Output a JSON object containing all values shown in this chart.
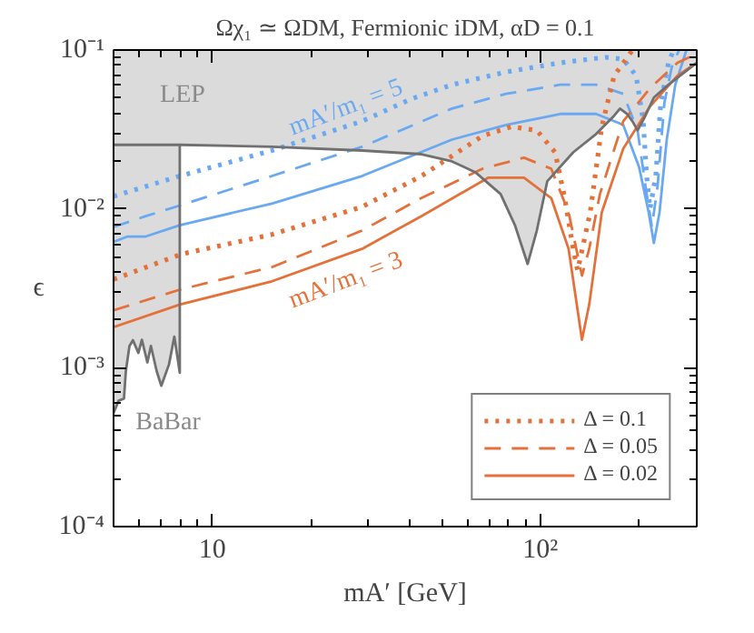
{
  "chart_data": {
    "type": "line",
    "title": "Ωχ₁ ≃ ΩDM, Fermionic iDM, αD = 0.1",
    "xlabel": "mA′ [GeV]",
    "ylabel": "ϵ",
    "log": "xy",
    "grid": false,
    "legend": "bottom right",
    "xlim": [
      5,
      300
    ],
    "ylim": [
      0.0001,
      0.1
    ],
    "xticks": [
      {
        "value": 10,
        "label": "10"
      },
      {
        "value": 100,
        "label": "10²"
      }
    ],
    "yticks": [
      {
        "value": 0.0001,
        "label": "10⁻⁴"
      },
      {
        "value": 0.001,
        "label": "10⁻³"
      },
      {
        "value": 0.01,
        "label": "10⁻²"
      },
      {
        "value": 0.1,
        "label": "10⁻¹"
      }
    ],
    "annotations": [
      "LEP",
      "BaBar",
      "mA′/m₁ = 5",
      "mA′/m₁ = 3"
    ],
    "series": [
      {
        "color": "#6aa9f2",
        "line_style": "dotted",
        "x": [
          5.0,
          7.96,
          15.2,
          28.6,
          40.2,
          53.8,
          78.7,
          115,
          158,
          179,
          196,
          206,
          211,
          216,
          225,
          233,
          246,
          255
        ],
        "values": [
          0.012,
          0.0161,
          0.0233,
          0.0356,
          0.049,
          0.0605,
          0.0728,
          0.0831,
          0.09,
          0.0876,
          0.069,
          0.0356,
          0.0161,
          0.01,
          0.0161,
          0.0465,
          0.0831,
          0.1
        ]
      },
      {
        "color": "#6aa9f2",
        "line_style": "dashed",
        "x": [
          5.0,
          6.27,
          7.96,
          15.2,
          28.6,
          53.8,
          78.7,
          115,
          148,
          179,
          198,
          211,
          219,
          228,
          239,
          252,
          265
        ],
        "values": [
          0.0077,
          0.009,
          0.0105,
          0.0161,
          0.0246,
          0.0428,
          0.053,
          0.0605,
          0.0605,
          0.053,
          0.0312,
          0.0124,
          0.0077,
          0.0141,
          0.0465,
          0.0788,
          0.1
        ]
      },
      {
        "color": "#6aa9f2",
        "line_style": "solid",
        "x": [
          5.0,
          5.52,
          6.27,
          7.96,
          15.2,
          28.6,
          53.8,
          78.7,
          115,
          148,
          179,
          200,
          214,
          222,
          231,
          243,
          258,
          279
        ],
        "values": [
          0.0062,
          0.0067,
          0.0067,
          0.0079,
          0.0108,
          0.0161,
          0.0273,
          0.0338,
          0.0396,
          0.0396,
          0.0338,
          0.0184,
          0.0095,
          0.0061,
          0.0095,
          0.0273,
          0.0605,
          0.1
        ]
      },
      {
        "name": "Δ = 0.1",
        "color": "#e5713a",
        "line_style": "dotted",
        "x": [
          5.0,
          8.07,
          15.2,
          28.6,
          43.4,
          66.7,
          81.7,
          97.6,
          111,
          119,
          126,
          130,
          142,
          154,
          168,
          191
        ],
        "values": [
          0.0036,
          0.0052,
          0.0069,
          0.0103,
          0.0161,
          0.0288,
          0.0329,
          0.0312,
          0.0227,
          0.0114,
          0.0056,
          0.0041,
          0.0095,
          0.0329,
          0.069,
          0.1
        ]
      },
      {
        "name": "Δ = 0.05",
        "color": "#e5713a",
        "line_style": "dashed",
        "x": [
          5.0,
          7.96,
          15.2,
          28.6,
          43.4,
          66.7,
          89.2,
          108,
          122,
          134,
          141,
          152,
          179,
          216,
          262,
          300
        ],
        "values": [
          0.0023,
          0.0031,
          0.0043,
          0.0073,
          0.0117,
          0.0179,
          0.021,
          0.0179,
          0.0095,
          0.0038,
          0.0056,
          0.0124,
          0.0356,
          0.0574,
          0.0831,
          0.0948
        ]
      },
      {
        "name": "Δ = 0.02",
        "color": "#e5713a",
        "line_style": "solid",
        "x": [
          5.0,
          7.96,
          15.2,
          28.6,
          43.4,
          69.3,
          89.2,
          108,
          122,
          134,
          141,
          154,
          179,
          216,
          262,
          300
        ],
        "values": [
          0.0018,
          0.0025,
          0.0035,
          0.0056,
          0.009,
          0.0157,
          0.0157,
          0.0117,
          0.0056,
          0.0015,
          0.0025,
          0.0095,
          0.0239,
          0.0441,
          0.069,
          0.0831
        ]
      },
      {
        "color": "#707070",
        "line_style": "solid",
        "x": [
          5.0,
          7.96,
          15.2,
          28.6,
          43.4,
          53.8,
          63.4,
          75.7,
          83.7,
          91.5,
          97.6,
          105,
          126,
          148,
          168,
          175,
          184,
          191,
          198,
          208,
          222,
          246,
          290,
          300
        ],
        "values": [
          0.0253,
          0.0253,
          0.0246,
          0.0233,
          0.0221,
          0.0199,
          0.017,
          0.0124,
          0.0079,
          0.0045,
          0.0073,
          0.0149,
          0.0227,
          0.0296,
          0.0386,
          0.0428,
          0.0396,
          0.0356,
          0.0312,
          0.0376,
          0.0502,
          0.0605,
          0.0788,
          0.0831
        ],
        "lower": [
          0.0253,
          0.0253,
          0.0246,
          0.0233,
          0.0221,
          0.0199,
          0.017,
          0.0124,
          0.0079,
          0.0045,
          0.0073,
          0.0149,
          0.0227,
          0.0296,
          0.0386,
          0.0428,
          0.0396,
          0.0356,
          0.0312,
          0.0376,
          0.0502,
          0.0605,
          0.0788,
          0.0831
        ],
        "upper": [
          0.1,
          0.1,
          0.1,
          0.1,
          0.1,
          0.1,
          0.1,
          0.1,
          0.1,
          0.1,
          0.1,
          0.1,
          0.1,
          0.1,
          0.1,
          0.1,
          0.1,
          0.1,
          0.1,
          0.1,
          0.1,
          0.1,
          0.1,
          0.1
        ]
      },
      {
        "color": "#707070",
        "line_style": "solid",
        "x": [
          5.0,
          5.18,
          5.38,
          5.45,
          5.59,
          5.73,
          5.95,
          6.1,
          6.34,
          6.5,
          6.77,
          6.99,
          7.38,
          7.66,
          7.96,
          7.96
        ],
        "values": [
          0.00052,
          0.00062,
          0.00064,
          0.00095,
          0.00137,
          0.00149,
          0.00124,
          0.0015,
          0.00108,
          0.00137,
          0.00095,
          0.00077,
          0.00105,
          0.00157,
          0.00093,
          0.0253
        ],
        "lower": [
          0.00052,
          0.00062,
          0.00064,
          0.00095,
          0.00137,
          0.00149,
          0.00124,
          0.0015,
          0.00108,
          0.00137,
          0.00095,
          0.00077,
          0.00105,
          0.00157,
          0.00093,
          0.0253
        ],
        "upper": [
          0.0253,
          0.0253,
          0.0253,
          0.0253,
          0.0253,
          0.0253,
          0.0253,
          0.0253,
          0.0253,
          0.0253,
          0.0253,
          0.0253,
          0.0253,
          0.0253,
          0.0253,
          0.0253
        ]
      }
    ]
  }
}
